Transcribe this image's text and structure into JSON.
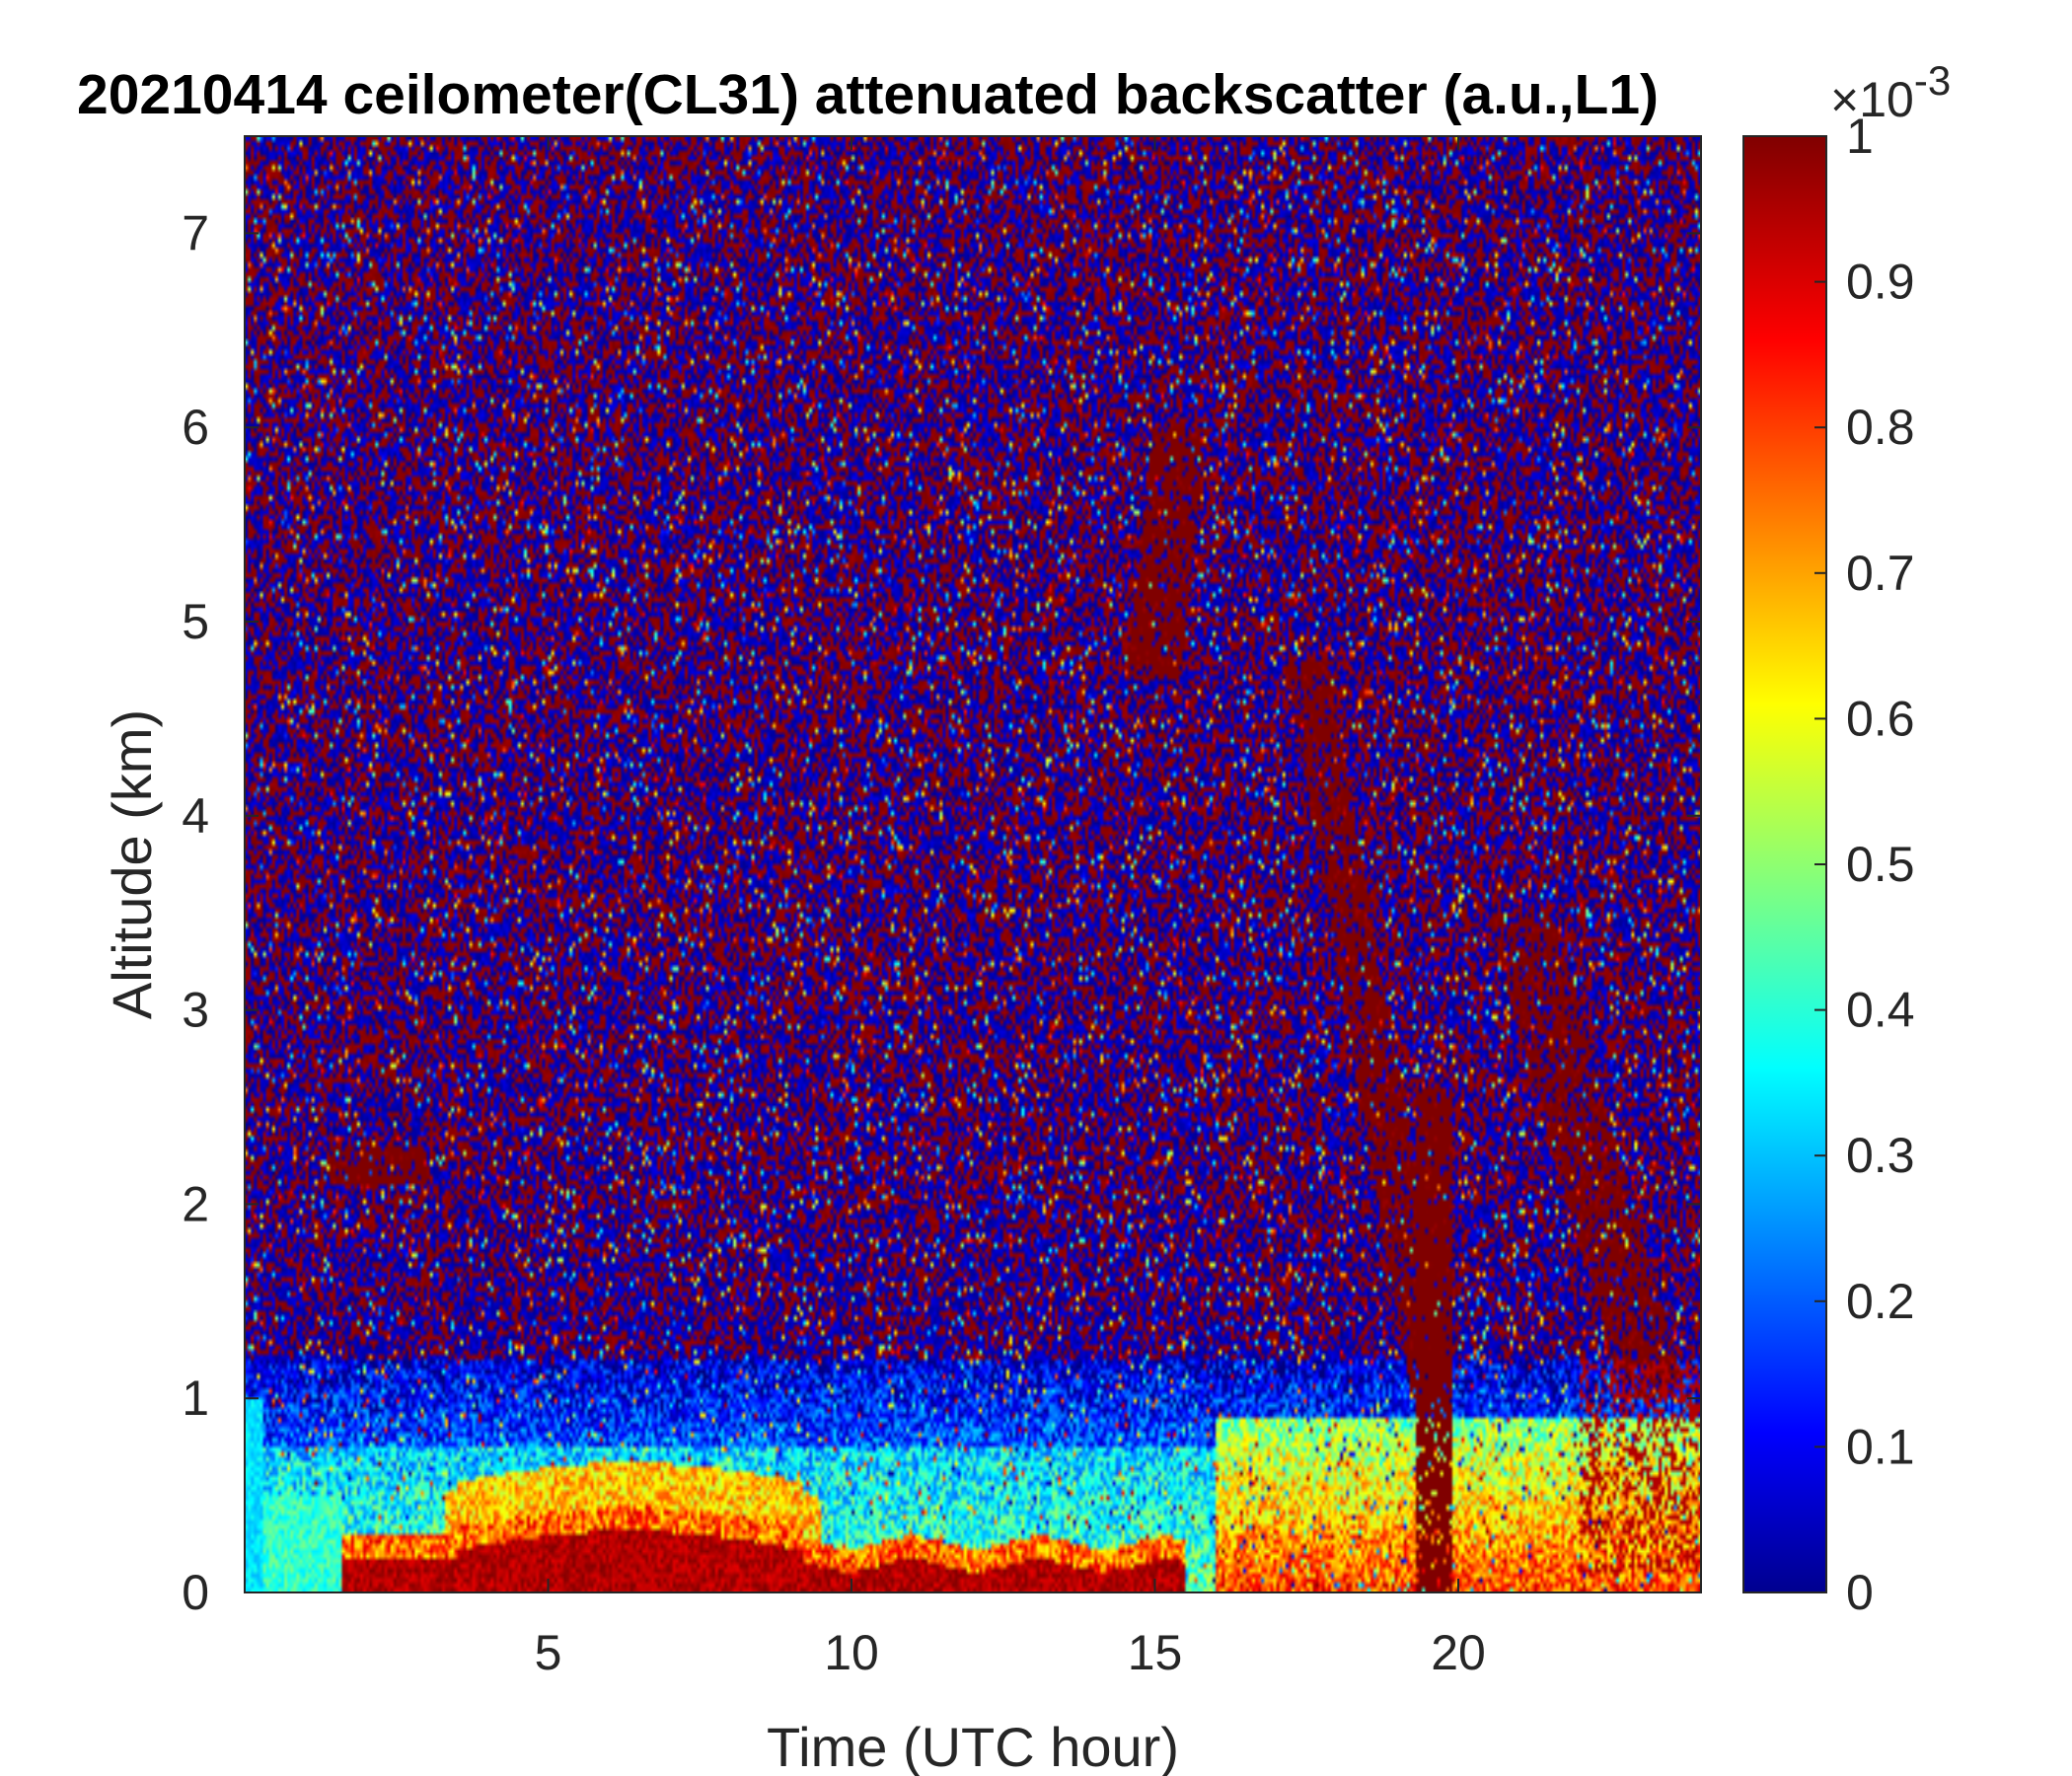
{
  "chart_data": {
    "type": "heatmap",
    "title": "20210414 ceilometer(CL31) attenuated backscatter (a.u.,L1)",
    "xlabel": "Time (UTC hour)",
    "ylabel": "Altitude (km)",
    "xlim": [
      0,
      24
    ],
    "ylim": [
      0,
      7.5
    ],
    "x_ticks": [
      5,
      10,
      15,
      20
    ],
    "y_ticks": [
      0,
      1,
      2,
      3,
      4,
      5,
      6,
      7
    ],
    "grid": false,
    "colorbar": {
      "colormap": "jet",
      "range": [
        0,
        1
      ],
      "ticks": [
        0,
        0.1,
        0.2,
        0.3,
        0.4,
        0.5,
        0.6,
        0.7,
        0.8,
        0.9,
        1
      ],
      "exponent_base": "×10",
      "exponent": "-3",
      "placement": "right"
    },
    "features": [
      {
        "kind": "boundary_layer_high",
        "x": [
          1.6,
          15.5
        ],
        "y": [
          0,
          0.3
        ],
        "value": 1.0
      },
      {
        "kind": "mixed_layer",
        "x": [
          0,
          24
        ],
        "y": [
          0,
          0.75
        ],
        "value": 0.45
      },
      {
        "kind": "cloud_fall_streak",
        "x": [
          14.5,
          16.0
        ],
        "y": [
          4.8,
          6.0
        ],
        "value": 1.0
      },
      {
        "kind": "precipitation",
        "x": [
          19.4,
          19.8
        ],
        "y": [
          0,
          2.5
        ],
        "value": 1.0
      },
      {
        "kind": "elevated_layer",
        "x": [
          1.4,
          3.0
        ],
        "y": [
          2.1,
          2.3
        ],
        "value": 1.0
      }
    ]
  }
}
